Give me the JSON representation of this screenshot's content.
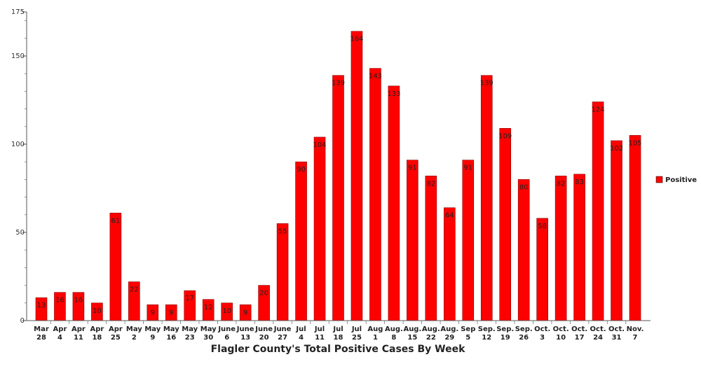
{
  "chart_data": {
    "type": "bar",
    "categories": [
      [
        "Mar",
        "28"
      ],
      [
        "Apr",
        "4"
      ],
      [
        "Apr",
        "11"
      ],
      [
        "Apr",
        "18"
      ],
      [
        "Apr",
        "25"
      ],
      [
        "May",
        "2"
      ],
      [
        "May",
        "9"
      ],
      [
        "May",
        "16"
      ],
      [
        "May",
        "23"
      ],
      [
        "May",
        "30"
      ],
      [
        "June",
        "6"
      ],
      [
        "June",
        "13"
      ],
      [
        "June",
        "20"
      ],
      [
        "June",
        "27"
      ],
      [
        "Jul",
        "4"
      ],
      [
        "Jul",
        "11"
      ],
      [
        "Jul",
        "18"
      ],
      [
        "Jul",
        "25"
      ],
      [
        "Aug",
        "1"
      ],
      [
        "Aug.",
        "8"
      ],
      [
        "Aug.",
        "15"
      ],
      [
        "Aug.",
        "22"
      ],
      [
        "Aug.",
        "29"
      ],
      [
        "Sep",
        "5"
      ],
      [
        "Sep.",
        "12"
      ],
      [
        "Sep.",
        "19"
      ],
      [
        "Sep.",
        "26"
      ],
      [
        "Oct.",
        "3"
      ],
      [
        "Oct.",
        "10"
      ],
      [
        "Oct.",
        "17"
      ],
      [
        "Oct.",
        "24"
      ],
      [
        "Oct.",
        "31"
      ],
      [
        "Nov.",
        "7"
      ]
    ],
    "series": [
      {
        "name": "Positive",
        "color": "#ff0000",
        "values": [
          13,
          16,
          16,
          10,
          61,
          22,
          9,
          9,
          17,
          12,
          10,
          9,
          20,
          55,
          90,
          104,
          139,
          164,
          143,
          133,
          91,
          82,
          64,
          91,
          139,
          109,
          80,
          58,
          82,
          83,
          124,
          102,
          105
        ]
      }
    ],
    "xlabel": "Flagler County's Total Positive Cases By Week",
    "ylabel": "",
    "ylim": [
      0,
      175
    ],
    "yticks": [
      0,
      50,
      100,
      150,
      175
    ],
    "legend": {
      "position": "right",
      "entries": [
        "Positive"
      ]
    },
    "grid": false
  }
}
